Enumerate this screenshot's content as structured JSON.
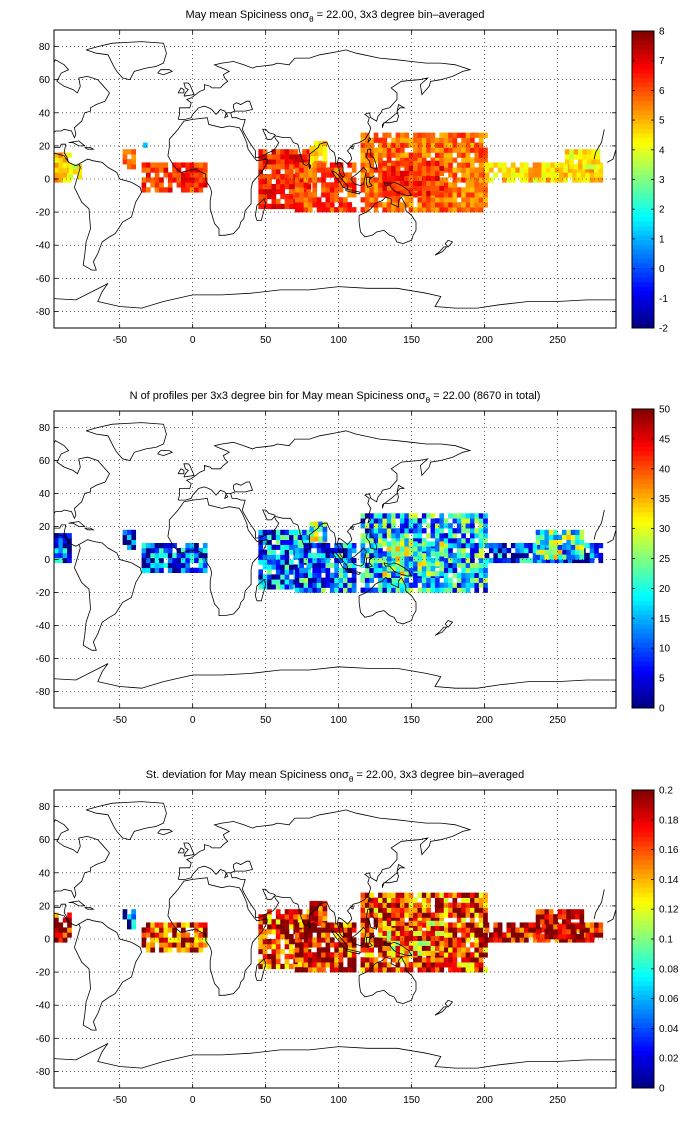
{
  "chart_data": [
    {
      "type": "heatmap",
      "title": "May mean Spiciness on",
      "title_symbol": "σ",
      "title_subscript": "θ",
      "title_tail": " = 22.00, 3x3 degree bin–averaged",
      "xlabel": "",
      "ylabel": "",
      "xlim": [
        -95,
        290
      ],
      "ylim": [
        -90,
        90
      ],
      "xticks": [
        -50,
        0,
        50,
        100,
        150,
        200,
        250
      ],
      "yticks": [
        80,
        60,
        40,
        20,
        0,
        -20,
        -40,
        -60,
        -80
      ],
      "grid": true,
      "colorbar": {
        "min": -2,
        "max": 8,
        "ticks": [
          8,
          7,
          6,
          5,
          4,
          3,
          2,
          1,
          0,
          -1,
          -2
        ],
        "colormap": "jet"
      },
      "regions": [
        {
          "x": [
            -95,
            -83
          ],
          "y": [
            -2,
            16
          ],
          "value": 4.8
        },
        {
          "x": [
            -85,
            -78
          ],
          "y": [
            0,
            8
          ],
          "value": 4.3
        },
        {
          "x": [
            -48,
            -40
          ],
          "y": [
            6,
            18
          ],
          "value": 5.4
        },
        {
          "x": [
            -34,
            -31
          ],
          "y": [
            19,
            22
          ],
          "value": 1.6
        },
        {
          "x": [
            -35,
            8
          ],
          "y": [
            -8,
            8
          ],
          "value": 6.3
        },
        {
          "x": [
            45,
            80
          ],
          "y": [
            -18,
            18
          ],
          "value": 6.5
        },
        {
          "x": [
            80,
            92
          ],
          "y": [
            8,
            22
          ],
          "value": 4.8
        },
        {
          "x": [
            70,
            112
          ],
          "y": [
            -20,
            10
          ],
          "value": 6.0
        },
        {
          "x": [
            115,
            200
          ],
          "y": [
            -20,
            28
          ],
          "value": 5.7
        },
        {
          "x": [
            130,
            170
          ],
          "y": [
            -10,
            10
          ],
          "value": 6.4
        },
        {
          "x": [
            200,
            280
          ],
          "y": [
            -2,
            10
          ],
          "value": 4.7
        },
        {
          "x": [
            255,
            278
          ],
          "y": [
            6,
            18
          ],
          "value": 4.4
        }
      ]
    },
    {
      "type": "heatmap",
      "title": "N of profiles per 3x3 degree bin for May mean Spiciness on",
      "title_symbol": "σ",
      "title_subscript": "θ",
      "title_tail": " = 22.00 (8670 in total)",
      "xlabel": "",
      "ylabel": "",
      "xlim": [
        -95,
        290
      ],
      "ylim": [
        -90,
        90
      ],
      "xticks": [
        -50,
        0,
        50,
        100,
        150,
        200,
        250
      ],
      "yticks": [
        80,
        60,
        40,
        20,
        0,
        -20,
        -40,
        -60,
        -80
      ],
      "grid": true,
      "colorbar": {
        "min": 0,
        "max": 50,
        "ticks": [
          50,
          45,
          40,
          35,
          30,
          25,
          20,
          15,
          10,
          5,
          0
        ],
        "colormap": "jet"
      },
      "regions": [
        {
          "x": [
            -95,
            -83
          ],
          "y": [
            -2,
            16
          ],
          "value": 8
        },
        {
          "x": [
            -48,
            -40
          ],
          "y": [
            6,
            18
          ],
          "value": 4
        },
        {
          "x": [
            -35,
            8
          ],
          "y": [
            -8,
            8
          ],
          "value": 10
        },
        {
          "x": [
            45,
            80
          ],
          "y": [
            -18,
            18
          ],
          "value": 12
        },
        {
          "x": [
            80,
            92
          ],
          "y": [
            8,
            22
          ],
          "value": 22
        },
        {
          "x": [
            70,
            112
          ],
          "y": [
            -20,
            10
          ],
          "value": 14
        },
        {
          "x": [
            115,
            200
          ],
          "y": [
            -20,
            28
          ],
          "value": 16
        },
        {
          "x": [
            130,
            170
          ],
          "y": [
            -10,
            10
          ],
          "value": 22
        },
        {
          "x": [
            200,
            280
          ],
          "y": [
            -2,
            10
          ],
          "value": 10
        },
        {
          "x": [
            235,
            268
          ],
          "y": [
            0,
            16
          ],
          "value": 22
        }
      ]
    },
    {
      "type": "heatmap",
      "title": "St. deviation for May mean Spiciness on",
      "title_symbol": "σ",
      "title_subscript": "θ",
      "title_tail": " = 22.00, 3x3 degree bin–averaged",
      "xlabel": "",
      "ylabel": "",
      "xlim": [
        -95,
        290
      ],
      "ylim": [
        -90,
        90
      ],
      "xticks": [
        -50,
        0,
        50,
        100,
        150,
        200,
        250
      ],
      "yticks": [
        80,
        60,
        40,
        20,
        0,
        -20,
        -40,
        -60,
        -80
      ],
      "grid": true,
      "colorbar": {
        "min": 0,
        "max": 0.2,
        "ticks": [
          0.2,
          0.18,
          0.16,
          0.14,
          0.12,
          0.1,
          0.08,
          0.06,
          0.04,
          0.02,
          0
        ],
        "colormap": "jet"
      },
      "regions": [
        {
          "x": [
            -95,
            -83
          ],
          "y": [
            -2,
            16
          ],
          "value": 0.19
        },
        {
          "x": [
            -48,
            -40
          ],
          "y": [
            6,
            18
          ],
          "value": 0.03
        },
        {
          "x": [
            -35,
            8
          ],
          "y": [
            -8,
            8
          ],
          "value": 0.17
        },
        {
          "x": [
            45,
            80
          ],
          "y": [
            -18,
            18
          ],
          "value": 0.17
        },
        {
          "x": [
            80,
            92
          ],
          "y": [
            8,
            22
          ],
          "value": 0.19
        },
        {
          "x": [
            70,
            112
          ],
          "y": [
            -20,
            10
          ],
          "value": 0.18
        },
        {
          "x": [
            115,
            200
          ],
          "y": [
            -20,
            28
          ],
          "value": 0.17
        },
        {
          "x": [
            130,
            170
          ],
          "y": [
            -10,
            10
          ],
          "value": 0.15
        },
        {
          "x": [
            200,
            280
          ],
          "y": [
            -2,
            10
          ],
          "value": 0.19
        },
        {
          "x": [
            235,
            268
          ],
          "y": [
            0,
            16
          ],
          "value": 0.2
        }
      ]
    }
  ]
}
